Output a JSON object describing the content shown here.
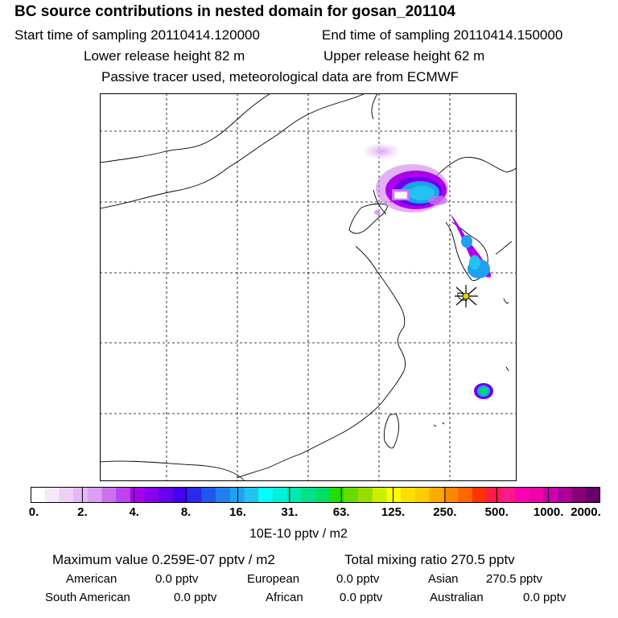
{
  "header": {
    "title": "BC  source contributions in nested domain for gosan_201104",
    "start_time": "Start time of sampling 20110414.120000",
    "end_time": "End time of sampling 20110414.150000",
    "lower_release": "Lower release height   82 m",
    "upper_release": "Upper release height   62 m",
    "tracer_note": "Passive tracer used, meteorological data are from ECMWF"
  },
  "map": {
    "receptor_marker": "gosan-receptor-star",
    "colors": {
      "coast": "#000000",
      "grid": "#000000",
      "receptor": "#d8d800"
    }
  },
  "colorbar": {
    "colors": [
      "#ffffff",
      "#f6e8fb",
      "#eed0f7",
      "#e6b8f3",
      "#dc9ef0",
      "#cc70ee",
      "#bb44ee",
      "#aa00ee",
      "#8800ee",
      "#6600ee",
      "#4400ee",
      "#2a2aee",
      "#2058ee",
      "#2080ee",
      "#20a0ee",
      "#20c4ee",
      "#00ffff",
      "#00f0d8",
      "#00e8b0",
      "#00e088",
      "#00dd66",
      "#22dd00",
      "#66dd00",
      "#99dd00",
      "#ccee00",
      "#ffff00",
      "#ffdd00",
      "#ffcc00",
      "#ffaa00",
      "#ff8800",
      "#ff6600",
      "#ff3300",
      "#ff1a4a",
      "#ff1a8a",
      "#ff00b0",
      "#ee00aa",
      "#cc00aa",
      "#aa0099",
      "#880077",
      "#660066"
    ],
    "tick_labels": [
      "0.",
      "2.",
      "4.",
      "8.",
      "16.",
      "31.",
      "63.",
      "125.",
      "250.",
      "500.",
      "1000.",
      "2000."
    ],
    "units": "10E-10 pptv / m2"
  },
  "stats": {
    "max_value": "Maximum value  0.259E-07 pptv / m2",
    "total_mixing": "Total mixing ratio     270.5 pptv",
    "regions": [
      {
        "name": "American",
        "value": "0.0 pptv"
      },
      {
        "name": "European",
        "value": "0.0 pptv"
      },
      {
        "name": "Asian",
        "value": "270.5 pptv"
      },
      {
        "name": "South American",
        "value": "0.0 pptv"
      },
      {
        "name": "African",
        "value": "0.0 pptv"
      },
      {
        "name": "Australian",
        "value": "0.0 pptv"
      }
    ]
  }
}
